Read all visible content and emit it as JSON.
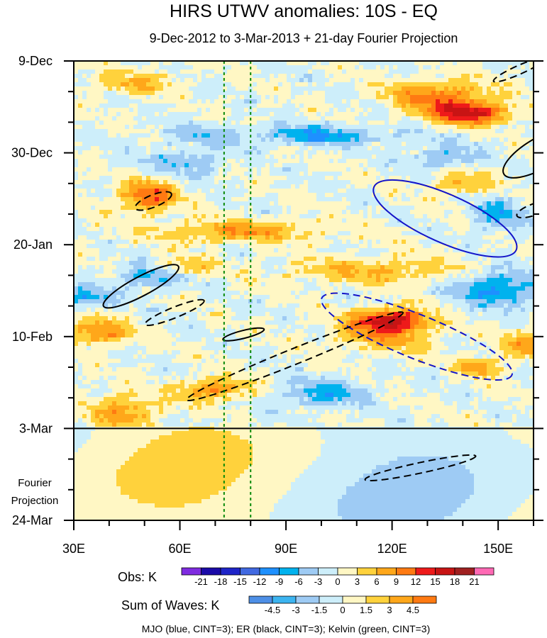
{
  "chart_data": {
    "type": "heatmap",
    "title": "HIRS UTWV anomalies: 10S - EQ",
    "subtitle": "9-Dec-2012 to 3-Mar-2013 + 21-day Fourier Projection",
    "x_axis": {
      "range": [
        30,
        160
      ],
      "units": "longitude (deg E)",
      "ticks": [
        {
          "value": 30,
          "label": "30E"
        },
        {
          "value": 60,
          "label": "60E"
        },
        {
          "value": 90,
          "label": "90E"
        },
        {
          "value": 120,
          "label": "120E"
        },
        {
          "value": 150,
          "label": "150E"
        }
      ]
    },
    "y_axis": {
      "range_days": [
        0,
        105
      ],
      "units": "days since 9-Dec-2012",
      "ticks": [
        {
          "day": 0,
          "label": "9-Dec"
        },
        {
          "day": 21,
          "label": "30-Dec"
        },
        {
          "day": 42,
          "label": "20-Jan"
        },
        {
          "day": 63,
          "label": "10-Feb"
        },
        {
          "day": 84,
          "label": "3-Mar"
        },
        {
          "day": 105,
          "label": "24-Mar"
        }
      ]
    },
    "projection_label": [
      "Fourier",
      "Projection"
    ],
    "projection_start_day": 84,
    "reference_longitudes": [
      72.5,
      80
    ],
    "obs_colorbar": {
      "label": "Obs: K",
      "levels": [
        "-21",
        "-18",
        "-15",
        "-12",
        "-9",
        "-6",
        "-3",
        "0",
        "3",
        "6",
        "9",
        "12",
        "15",
        "18",
        "21"
      ],
      "colors": [
        "#7f2be0",
        "#1a0aa8",
        "#1e24c8",
        "#4169e1",
        "#1e90ff",
        "#00b2ee",
        "#9ecbf4",
        "#cdeefa",
        "#fff7c4",
        "#ffd23c",
        "#ffa71a",
        "#ff7a12",
        "#ee1a1a",
        "#c81414",
        "#a02020",
        "#ff69b4"
      ]
    },
    "waves_colorbar": {
      "label": "Sum of Waves: K",
      "levels": [
        "-4.5",
        "-3",
        "-1.5",
        "0",
        "1.5",
        "3",
        "4.5"
      ],
      "colors": [
        "#4d8fe6",
        "#3cb4f0",
        "#9ecbf4",
        "#cdeefa",
        "#fff7c4",
        "#ffd23c",
        "#ffa71a",
        "#ff7a12"
      ]
    },
    "contours": [
      {
        "wave": "MJO",
        "sign": "positive",
        "center": [
          135,
          36
        ],
        "lon_half_width": 22,
        "day_half_height": 5.5,
        "tilt_deg": 24
      },
      {
        "wave": "MJO",
        "sign": "negative",
        "center": [
          127,
          63
        ],
        "lon_half_width": 29,
        "day_half_height": 5,
        "tilt_deg": 22
      },
      {
        "wave": "ER",
        "sign": "positive",
        "center": [
          49,
          51.5
        ],
        "lon_half_width": 12,
        "day_half_height": 2.2,
        "tilt_deg": -28
      },
      {
        "wave": "ER",
        "sign": "positive",
        "center": [
          78,
          62.5
        ],
        "lon_half_width": 6,
        "day_half_height": 0.9,
        "tilt_deg": -14
      },
      {
        "wave": "ER",
        "sign": "negative",
        "center": [
          52.5,
          32
        ],
        "lon_half_width": 5.5,
        "day_half_height": 1.4,
        "tilt_deg": -22
      },
      {
        "wave": "ER",
        "sign": "negative",
        "center": [
          58.5,
          57.5
        ],
        "lon_half_width": 9,
        "day_half_height": 1.2,
        "tilt_deg": -22
      },
      {
        "wave": "ER",
        "sign": "negative",
        "center": [
          92.5,
          67.5
        ],
        "lon_half_width": 33,
        "day_half_height": 1.8,
        "tilt_deg": -22
      },
      {
        "wave": "ER",
        "sign": "negative",
        "center": [
          128,
          93
        ],
        "lon_half_width": 16,
        "day_half_height": 1.2,
        "tilt_deg": -12
      },
      {
        "wave": "ER",
        "sign": "positive",
        "center": [
          162,
          21
        ],
        "lon_half_width": 12,
        "day_half_height": 3.5,
        "tilt_deg": -30
      },
      {
        "wave": "ER",
        "sign": "negative",
        "center": [
          156,
          2
        ],
        "lon_half_width": 8,
        "day_half_height": 1,
        "tilt_deg": -24
      },
      {
        "wave": "ER",
        "sign": "negative",
        "center": [
          160,
          34
        ],
        "lon_half_width": 5,
        "day_half_height": 1.3,
        "tilt_deg": -20
      }
    ],
    "footnote": "MJO (blue, CINT=3); ER (black, CINT=3); Kelvin (green, CINT=3)"
  }
}
